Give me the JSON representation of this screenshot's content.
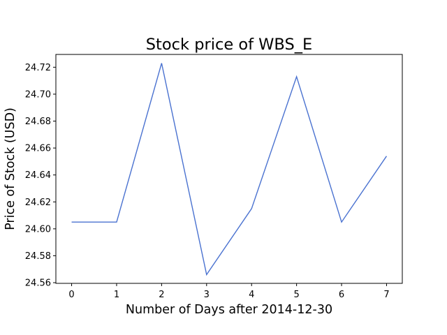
{
  "chart_data": {
    "type": "line",
    "title": "Stock price of WBS_E",
    "xlabel": "Number of Days after 2014-12-30",
    "ylabel": "Price of Stock (USD)",
    "x": [
      0,
      1,
      2,
      3,
      4,
      5,
      6,
      7
    ],
    "series": [
      {
        "values": [
          24.605,
          24.605,
          24.723,
          24.566,
          24.615,
          24.713,
          24.605,
          24.654
        ],
        "color": "#4a72d0"
      }
    ],
    "xlim": [
      -0.35,
      7.35
    ],
    "ylim": [
      24.5595,
      24.7295
    ],
    "xticks": [
      "0",
      "1",
      "2",
      "3",
      "4",
      "5",
      "6",
      "7"
    ],
    "yticks": [
      "24.56",
      "24.58",
      "24.60",
      "24.62",
      "24.64",
      "24.66",
      "24.68",
      "24.70",
      "24.72"
    ],
    "grid": false
  }
}
